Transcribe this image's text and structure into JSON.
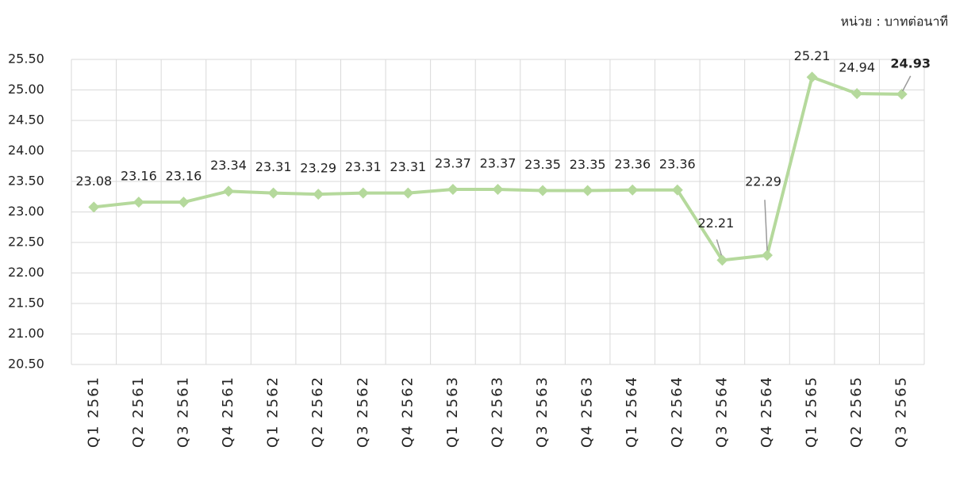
{
  "chart_data": {
    "type": "line",
    "unit_label": "หน่วย : บาทต่อนาที",
    "categories": [
      "Q1 2561",
      "Q2 2561",
      "Q3 2561",
      "Q4 2561",
      "Q1 2562",
      "Q2 2562",
      "Q3 2562",
      "Q4 2562",
      "Q1 2563",
      "Q2 2563",
      "Q3 2563",
      "Q4 2563",
      "Q1 2564",
      "Q2 2564",
      "Q3 2564",
      "Q4 2564",
      "Q1 2565",
      "Q2 2565",
      "Q3 2565"
    ],
    "values": [
      23.08,
      23.16,
      23.16,
      23.34,
      23.31,
      23.29,
      23.31,
      23.31,
      23.37,
      23.37,
      23.35,
      23.35,
      23.36,
      23.36,
      22.21,
      22.29,
      25.21,
      24.94,
      24.93
    ],
    "color": "#b5d99c",
    "ylim": [
      20.5,
      25.5
    ],
    "yticks": [
      {
        "value": 20.5,
        "label": "20.50"
      },
      {
        "value": 21,
        "label": "21.00"
      },
      {
        "value": 21.5,
        "label": "21.50"
      },
      {
        "value": 22,
        "label": "22.00"
      },
      {
        "value": 22.5,
        "label": "22.50"
      },
      {
        "value": 23,
        "label": "23.00"
      },
      {
        "value": 23.5,
        "label": "23.50"
      },
      {
        "value": 24,
        "label": "24.00"
      },
      {
        "value": 24.5,
        "label": "24.50"
      },
      {
        "value": 25,
        "label": "25.00"
      },
      {
        "value": 25.5,
        "label": "25.50"
      }
    ],
    "grid": true
  }
}
